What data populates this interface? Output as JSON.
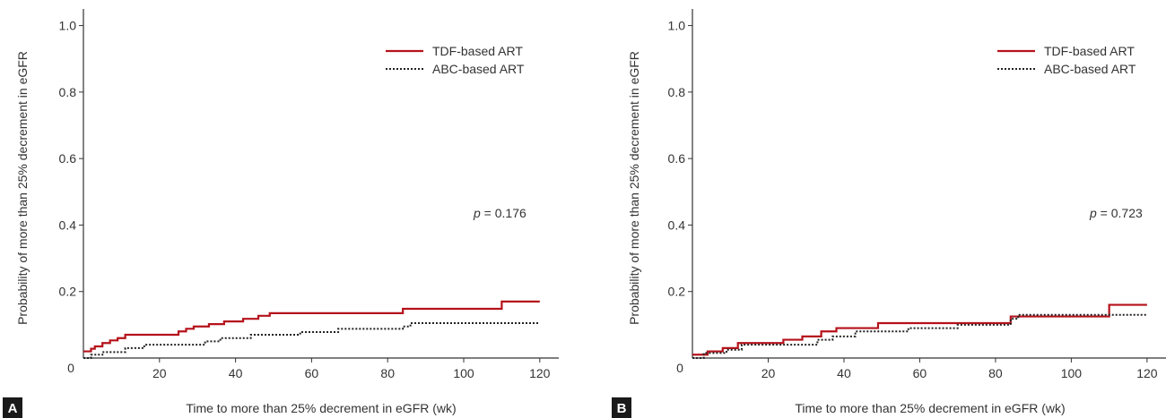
{
  "chart_data": [
    {
      "type": "line",
      "panel_label": "A",
      "xlabel": "Time to more than 25% decrement in eGFR (wk)",
      "ylabel": "Probability of more than 25% decrement in eGFR",
      "xlim": [
        0,
        125
      ],
      "ylim": [
        0,
        1.05
      ],
      "x_ticks": [
        20,
        40,
        60,
        80,
        100,
        120
      ],
      "y_ticks": [
        0.2,
        0.4,
        0.6,
        0.8,
        1.0
      ],
      "origin_label": "0",
      "legend_position": "top-right",
      "p_value": {
        "p": "p",
        "rest": " = 0.176"
      },
      "series": [
        {
          "name": "TDF-based ART",
          "color": "#b5121b",
          "style": "solid",
          "x": [
            0,
            1,
            2,
            3,
            5,
            7,
            9,
            11,
            25,
            27,
            29,
            33,
            37,
            42,
            46,
            49,
            84,
            110,
            120
          ],
          "y": [
            0.02,
            0.02,
            0.028,
            0.035,
            0.045,
            0.053,
            0.06,
            0.07,
            0.08,
            0.088,
            0.095,
            0.102,
            0.11,
            0.118,
            0.127,
            0.135,
            0.148,
            0.17,
            0.17
          ]
        },
        {
          "name": "ABC-based ART",
          "color": "#222222",
          "style": "dotted",
          "x": [
            0,
            2,
            5,
            11,
            16,
            32,
            36,
            44,
            57,
            67,
            84,
            86,
            120
          ],
          "y": [
            0.0,
            0.01,
            0.018,
            0.03,
            0.04,
            0.05,
            0.06,
            0.07,
            0.078,
            0.088,
            0.095,
            0.105,
            0.105
          ]
        }
      ]
    },
    {
      "type": "line",
      "panel_label": "B",
      "xlabel": "Time to more than 25% decrement in eGFR (wk)",
      "ylabel": "Probability of more than 25% decrement in eGFR",
      "xlim": [
        0,
        125
      ],
      "ylim": [
        0,
        1.05
      ],
      "x_ticks": [
        20,
        40,
        60,
        80,
        100,
        120
      ],
      "y_ticks": [
        0.2,
        0.4,
        0.6,
        0.8,
        1.0
      ],
      "origin_label": "0",
      "legend_position": "top-right",
      "p_value": {
        "p": "p",
        "rest": " = 0.723"
      },
      "series": [
        {
          "name": "TDF-based ART",
          "color": "#b5121b",
          "style": "solid",
          "x": [
            0,
            4,
            8,
            12,
            24,
            29,
            34,
            38,
            49,
            84,
            110,
            120
          ],
          "y": [
            0.01,
            0.02,
            0.03,
            0.045,
            0.055,
            0.065,
            0.08,
            0.09,
            0.105,
            0.125,
            0.16,
            0.16
          ]
        },
        {
          "name": "ABC-based ART",
          "color": "#222222",
          "style": "dotted",
          "x": [
            0,
            3,
            9,
            13,
            33,
            37,
            43,
            57,
            70,
            84,
            86,
            120
          ],
          "y": [
            0.0,
            0.015,
            0.025,
            0.04,
            0.055,
            0.065,
            0.08,
            0.09,
            0.1,
            0.118,
            0.13,
            0.13
          ]
        }
      ]
    }
  ]
}
